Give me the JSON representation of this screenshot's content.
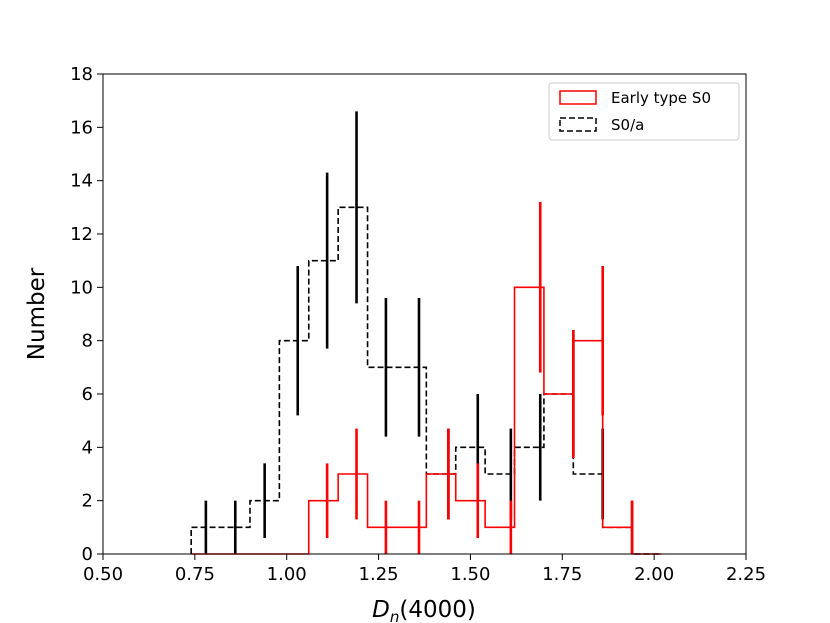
{
  "chart_data": {
    "type": "histogram",
    "xlabel": "D_n(4000)",
    "xlabel_main": "D",
    "xlabel_sub": "n",
    "xlabel_tail": "(4000)",
    "ylabel": "Number",
    "xlim": [
      0.5,
      2.25
    ],
    "ylim": [
      0,
      18
    ],
    "xticks": [
      0.5,
      0.75,
      1.0,
      1.25,
      1.5,
      1.75,
      2.0,
      2.25
    ],
    "xtick_labels": [
      "0.50",
      "0.75",
      "1.00",
      "1.25",
      "1.50",
      "1.75",
      "2.00",
      "2.25"
    ],
    "yticks": [
      0,
      2,
      4,
      6,
      8,
      10,
      12,
      14,
      16,
      18
    ],
    "ytick_labels": [
      "0",
      "2",
      "4",
      "6",
      "8",
      "10",
      "12",
      "14",
      "16",
      "18"
    ],
    "grid": false,
    "legend_position": "top-right",
    "bin_edges": [
      0.74,
      0.82,
      0.9,
      0.98,
      1.06,
      1.14,
      1.22,
      1.3,
      1.38,
      1.46,
      1.54,
      1.62,
      1.7,
      1.78,
      1.86,
      1.94,
      2.02
    ],
    "series": [
      {
        "name": "S0/a",
        "style": "dashed",
        "color": "#000000",
        "counts": [
          1,
          1,
          2,
          8,
          11,
          13,
          7,
          7,
          3,
          4,
          3,
          4,
          6,
          3,
          1,
          0
        ],
        "errorbars": [
          {
            "x": 0.78,
            "low": 0,
            "high": 2
          },
          {
            "x": 0.86,
            "low": 0,
            "high": 2
          },
          {
            "x": 0.94,
            "low": 0.6,
            "high": 3.4
          },
          {
            "x": 1.03,
            "low": 5.2,
            "high": 10.8
          },
          {
            "x": 1.11,
            "low": 7.7,
            "high": 14.3
          },
          {
            "x": 1.19,
            "low": 9.4,
            "high": 16.6
          },
          {
            "x": 1.27,
            "low": 4.4,
            "high": 9.6
          },
          {
            "x": 1.36,
            "low": 4.4,
            "high": 9.6
          },
          {
            "x": 1.44,
            "low": 1.3,
            "high": 4.7
          },
          {
            "x": 1.52,
            "low": 2.0,
            "high": 6.0
          },
          {
            "x": 1.61,
            "low": 1.3,
            "high": 4.7
          },
          {
            "x": 1.69,
            "low": 2.0,
            "high": 6.0
          },
          {
            "x": 1.78,
            "low": 3.6,
            "high": 8.4
          },
          {
            "x": 1.86,
            "low": 1.3,
            "high": 4.7
          },
          {
            "x": 1.94,
            "low": 0,
            "high": 2
          }
        ]
      },
      {
        "name": "Early type S0",
        "style": "solid",
        "color": "#ff0000",
        "counts": [
          0,
          0,
          0,
          0,
          2,
          3,
          1,
          1,
          3,
          2,
          1,
          10,
          6,
          8,
          1,
          0
        ],
        "errorbars": [
          {
            "x": 1.11,
            "low": 0.6,
            "high": 3.4
          },
          {
            "x": 1.19,
            "low": 1.3,
            "high": 4.7
          },
          {
            "x": 1.27,
            "low": 0,
            "high": 2
          },
          {
            "x": 1.36,
            "low": 0,
            "high": 2
          },
          {
            "x": 1.44,
            "low": 1.3,
            "high": 4.7
          },
          {
            "x": 1.52,
            "low": 0.6,
            "high": 3.4
          },
          {
            "x": 1.61,
            "low": 0,
            "high": 2
          },
          {
            "x": 1.69,
            "low": 6.8,
            "high": 13.2
          },
          {
            "x": 1.78,
            "low": 3.6,
            "high": 8.4
          },
          {
            "x": 1.86,
            "low": 5.2,
            "high": 10.8
          },
          {
            "x": 1.94,
            "low": 0,
            "high": 2
          }
        ]
      }
    ]
  },
  "legend": {
    "items": [
      {
        "label": "Early type S0",
        "style": "solid",
        "color": "#ff0000"
      },
      {
        "label": "S0/a",
        "style": "dashed",
        "color": "#000000"
      }
    ]
  }
}
